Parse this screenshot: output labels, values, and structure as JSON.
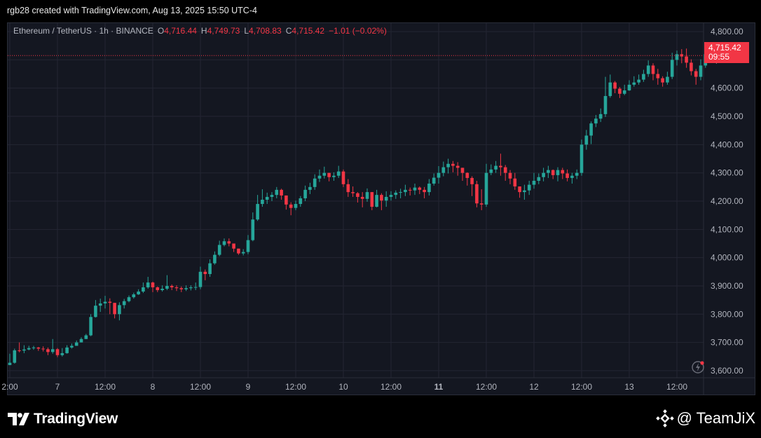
{
  "header": {
    "credit": "rgb28 created with TradingView.com, Aug 13, 2025 15:50 UTC-4"
  },
  "legend": {
    "symbol": "Ethereum / TetherUS · 1h · BINANCE",
    "o_label": "O",
    "o_value": "4,716.44",
    "h_label": "H",
    "h_value": "4,749.73",
    "l_label": "L",
    "l_value": "4,708.83",
    "c_label": "C",
    "c_value": "4,715.42",
    "change": "−1.01 (−0.02%)"
  },
  "price_tag": {
    "price": "4,715.42",
    "countdown": "09:55"
  },
  "footer": {
    "tv_brand": "TradingView",
    "watermark": "@ TeamJiX"
  },
  "colors": {
    "up": "#26a69a",
    "down": "#f23645",
    "background": "#141721",
    "grid": "#232633",
    "text": "#b2b5be"
  },
  "icons": {
    "tv_logo": "tradingview-logo-icon",
    "binance_logo": "binance-logo-icon",
    "replay": "replay-lightning-icon"
  },
  "chart_data": {
    "type": "candlestick",
    "y_ticks": [
      "4,800.00",
      "4,700.00",
      "4,600.00",
      "4,500.00",
      "4,400.00",
      "4,300.00",
      "4,200.00",
      "4,100.00",
      "4,000.00",
      "3,900.00",
      "3,800.00",
      "3,700.00",
      "3,600.00"
    ],
    "y_tick_values": [
      4800,
      4700,
      4600,
      4500,
      4400,
      4300,
      4200,
      4100,
      4000,
      3900,
      3800,
      3700,
      3600
    ],
    "ylim": [
      3575,
      4830
    ],
    "x_ticks": [
      {
        "label": "2:00",
        "index": 0,
        "bold": false
      },
      {
        "label": "7",
        "index": 10,
        "bold": false
      },
      {
        "label": "12:00",
        "index": 20,
        "bold": false
      },
      {
        "label": "8",
        "index": 30,
        "bold": false
      },
      {
        "label": "12:00",
        "index": 40,
        "bold": false
      },
      {
        "label": "9",
        "index": 50,
        "bold": false
      },
      {
        "label": "12:00",
        "index": 60,
        "bold": false
      },
      {
        "label": "10",
        "index": 70,
        "bold": false
      },
      {
        "label": "12:00",
        "index": 80,
        "bold": false
      },
      {
        "label": "11",
        "index": 90,
        "bold": true
      },
      {
        "label": "12:00",
        "index": 100,
        "bold": false
      },
      {
        "label": "12",
        "index": 110,
        "bold": false
      },
      {
        "label": "12:00",
        "index": 120,
        "bold": false
      },
      {
        "label": "13",
        "index": 130,
        "bold": false
      },
      {
        "label": "12:00",
        "index": 140,
        "bold": false
      }
    ],
    "last_price": 4715.42,
    "closes": [
      3628,
      3672,
      3671,
      3675,
      3680,
      3682,
      3678,
      3676,
      3666,
      3676,
      3655,
      3662,
      3682,
      3688,
      3700,
      3712,
      3725,
      3790,
      3830,
      3838,
      3844,
      3840,
      3800,
      3832,
      3846,
      3860,
      3870,
      3880,
      3895,
      3912,
      3895,
      3885,
      3890,
      3900,
      3895,
      3892,
      3888,
      3892,
      3895,
      3896,
      3950,
      3942,
      3980,
      4010,
      4045,
      4058,
      4050,
      4032,
      4015,
      4020,
      4062,
      4135,
      4190,
      4205,
      4215,
      4222,
      4240,
      4220,
      4188,
      4176,
      4190,
      4210,
      4240,
      4250,
      4280,
      4290,
      4300,
      4285,
      4290,
      4305,
      4260,
      4232,
      4228,
      4215,
      4208,
      4232,
      4180,
      4222,
      4202,
      4215,
      4222,
      4230,
      4232,
      4240,
      4238,
      4248,
      4240,
      4232,
      4262,
      4283,
      4300,
      4320,
      4332,
      4325,
      4318,
      4300,
      4282,
      4260,
      4192,
      4188,
      4300,
      4312,
      4325,
      4320,
      4300,
      4280,
      4252,
      4232,
      4238,
      4258,
      4272,
      4285,
      4300,
      4310,
      4292,
      4310,
      4298,
      4282,
      4290,
      4300,
      4400,
      4432,
      4475,
      4492,
      4508,
      4572,
      4620,
      4598,
      4580,
      4592,
      4612,
      4620,
      4630,
      4650,
      4680,
      4650,
      4635,
      4620,
      4640,
      4700,
      4720,
      4712,
      4690,
      4660,
      4640,
      4680,
      4720,
      4715
    ],
    "highs": [
      3660,
      3678,
      3700,
      3690,
      3688,
      3688,
      3684,
      3686,
      3682,
      3712,
      3680,
      3680,
      3690,
      3696,
      3707,
      3718,
      3730,
      3800,
      3850,
      3855,
      3865,
      3856,
      3822,
      3842,
      3854,
      3866,
      3876,
      3888,
      3912,
      3932,
      3915,
      3898,
      3902,
      3938,
      3905,
      3902,
      3898,
      3902,
      3902,
      3912,
      3968,
      3958,
      3994,
      4022,
      4060,
      4068,
      4068,
      4042,
      4024,
      4030,
      4080,
      4160,
      4222,
      4242,
      4230,
      4232,
      4250,
      4244,
      4212,
      4196,
      4202,
      4218,
      4255,
      4265,
      4295,
      4312,
      4322,
      4300,
      4302,
      4325,
      4312,
      4278,
      4252,
      4232,
      4232,
      4245,
      4232,
      4240,
      4228,
      4235,
      4235,
      4238,
      4244,
      4258,
      4248,
      4262,
      4252,
      4250,
      4278,
      4298,
      4324,
      4340,
      4350,
      4342,
      4338,
      4318,
      4302,
      4288,
      4272,
      4242,
      4332,
      4330,
      4342,
      4368,
      4328,
      4310,
      4300,
      4252,
      4258,
      4272,
      4300,
      4298,
      4318,
      4325,
      4312,
      4320,
      4318,
      4312,
      4300,
      4312,
      4418,
      4452,
      4482,
      4505,
      4528,
      4640,
      4648,
      4625,
      4604,
      4612,
      4628,
      4642,
      4648,
      4665,
      4698,
      4688,
      4668,
      4642,
      4658,
      4725,
      4733,
      4738,
      4740,
      4702,
      4668,
      4702,
      4738,
      4750
    ],
    "lows": [
      3620,
      3625,
      3665,
      3662,
      3672,
      3674,
      3670,
      3668,
      3655,
      3660,
      3648,
      3650,
      3660,
      3678,
      3690,
      3700,
      3712,
      3722,
      3788,
      3808,
      3820,
      3800,
      3785,
      3778,
      3820,
      3842,
      3855,
      3868,
      3875,
      3890,
      3878,
      3878,
      3880,
      3885,
      3885,
      3882,
      3878,
      3882,
      3884,
      3885,
      3888,
      3920,
      3932,
      3975,
      4005,
      4040,
      4040,
      4020,
      4010,
      4008,
      4012,
      4058,
      4130,
      4180,
      4190,
      4200,
      4210,
      4205,
      4170,
      4150,
      4168,
      4180,
      4200,
      4225,
      4240,
      4268,
      4280,
      4270,
      4272,
      4282,
      4250,
      4215,
      4215,
      4195,
      4178,
      4198,
      4168,
      4178,
      4168,
      4180,
      4202,
      4208,
      4210,
      4218,
      4220,
      4222,
      4225,
      4210,
      4220,
      4255,
      4262,
      4288,
      4298,
      4302,
      4290,
      4272,
      4255,
      4218,
      4178,
      4168,
      4180,
      4292,
      4300,
      4290,
      4272,
      4260,
      4240,
      4212,
      4205,
      4222,
      4244,
      4260,
      4270,
      4282,
      4278,
      4270,
      4278,
      4270,
      4262,
      4278,
      4290,
      4382,
      4402,
      4462,
      4480,
      4498,
      4566,
      4582,
      4565,
      4575,
      4590,
      4605,
      4612,
      4622,
      4640,
      4628,
      4612,
      4605,
      4612,
      4632,
      4680,
      4688,
      4672,
      4645,
      4612,
      4628,
      4672,
      4705
    ]
  }
}
